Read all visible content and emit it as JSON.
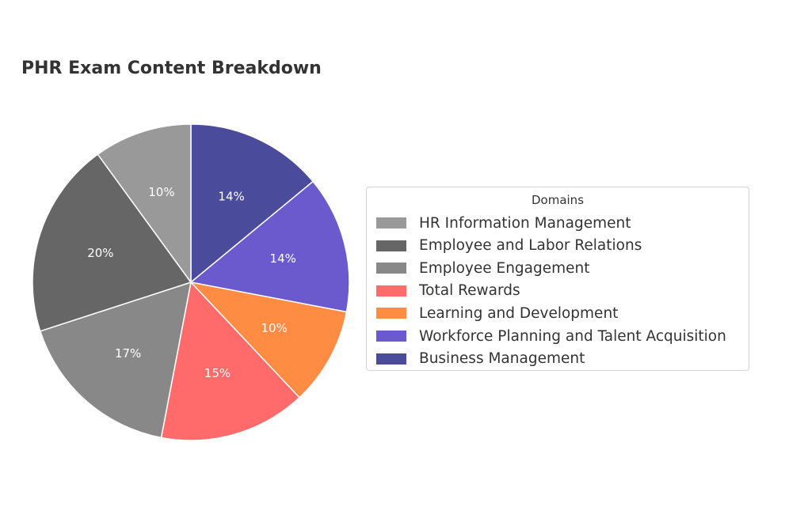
{
  "chart_data": {
    "type": "pie",
    "title": "PHR Exam Content Breakdown",
    "legend_title": "Domains",
    "legend_position": "right",
    "start_angle_deg": 90,
    "direction": "clockwise",
    "slices": [
      {
        "label": "Business Management",
        "value": 14,
        "pct_label": "14%",
        "color": "#4b4b9c"
      },
      {
        "label": "Workforce Planning and Talent Acquisition",
        "value": 14,
        "pct_label": "14%",
        "color": "#6a5acd"
      },
      {
        "label": "Learning and Development",
        "value": 10,
        "pct_label": "10%",
        "color": "#ff8c42"
      },
      {
        "label": "Total Rewards",
        "value": 15,
        "pct_label": "15%",
        "color": "#ff6b6b"
      },
      {
        "label": "Employee Engagement",
        "value": 17,
        "pct_label": "17%",
        "color": "#888888"
      },
      {
        "label": "Employee and Labor Relations",
        "value": 20,
        "pct_label": "20%",
        "color": "#666666"
      },
      {
        "label": "HR Information Management",
        "value": 10,
        "pct_label": "10%",
        "color": "#999999"
      }
    ],
    "legend_order": [
      "HR Information Management",
      "Employee and Labor Relations",
      "Employee Engagement",
      "Total Rewards",
      "Learning and Development",
      "Workforce Planning and Talent Acquisition",
      "Business Management"
    ]
  }
}
